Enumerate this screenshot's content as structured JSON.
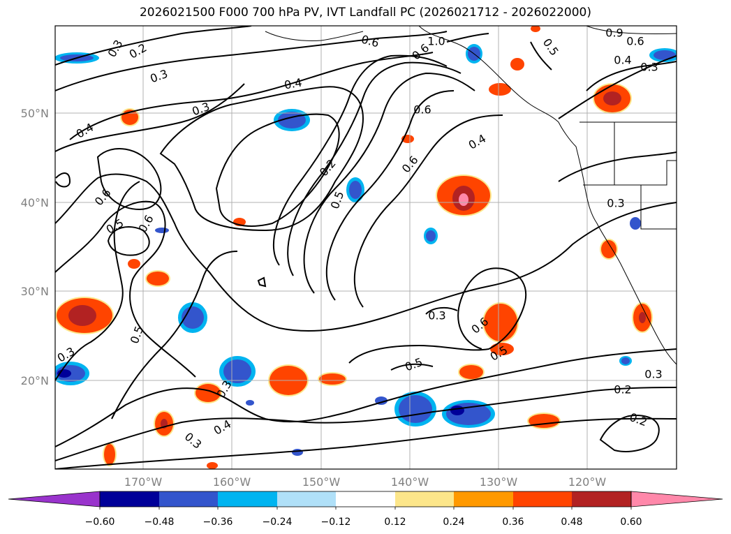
{
  "title": "2026021500 F000 700 hPa PV, IVT Landfall PC (2026021712 - 2026022000)",
  "map": {
    "lon_labels": [
      "170°W",
      "160°W",
      "150°W",
      "140°W",
      "130°W",
      "120°W"
    ],
    "lat_labels": [
      "50°N",
      "40°N",
      "30°N",
      "20°N"
    ],
    "contour_labels": [
      "0.3",
      "0.2",
      "0.3",
      "0.6",
      "1.0",
      "0.6",
      "0.5",
      "0.9",
      "0.6",
      "0.4",
      "0.3",
      "0.3",
      "0.4",
      "0.4",
      "0.6",
      "0.4",
      "0.6",
      "0.2",
      "0.5",
      "0.6",
      "0.5",
      "0.6",
      "0.3",
      "0.3",
      "0.6",
      "0.5",
      "0.3",
      "0.5",
      "0.5",
      "0.3",
      "0.4",
      "0.3",
      "0.2",
      "0.2",
      "0.3"
    ],
    "line_color": "#000000",
    "grid_color": "#b0b0b0"
  },
  "colorbar": {
    "ticks": [
      "−0.60",
      "−0.48",
      "−0.36",
      "−0.24",
      "−0.12",
      "0.12",
      "0.24",
      "0.36",
      "0.48",
      "0.60"
    ],
    "colors": [
      "#9933cc",
      "#000099",
      "#3355cc",
      "#00b4f0",
      "#b0e0f8",
      "#ffffff",
      "#fce68a",
      "#ff9900",
      "#ff4400",
      "#b22222",
      "#ff88aa"
    ]
  },
  "palette": {
    "blue_dark": "#000099",
    "blue_mid": "#3355cc",
    "blue_light": "#00b4f0",
    "red_dark": "#b22222",
    "red_mid": "#ff4400",
    "orange": "#ff9900",
    "yellow": "#fce68a",
    "pink": "#ff88aa"
  }
}
